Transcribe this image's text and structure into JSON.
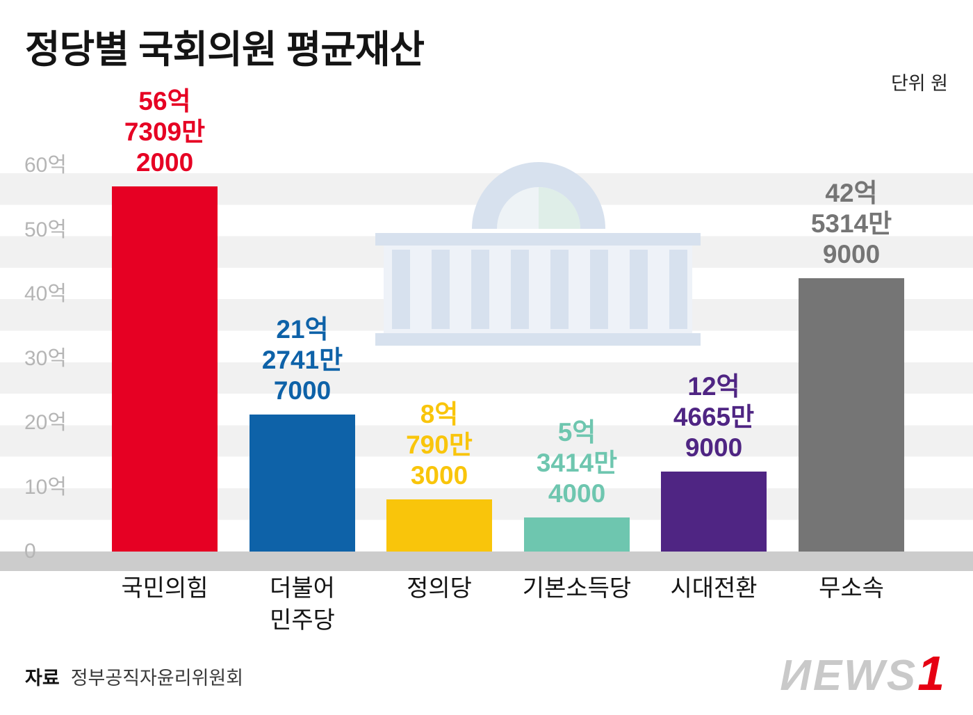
{
  "header": {
    "title": "정당별 국회의원 평균재산",
    "unit_label": "단위 원"
  },
  "chart_data": {
    "type": "bar",
    "title": "정당별 국회의원 평균재산",
    "unit": "원",
    "grid": "horizontal-striped-bands",
    "legend": "none",
    "ylim_eok": [
      0,
      60
    ],
    "ytick_labels": [
      "60억",
      "50억",
      "40억",
      "30억",
      "20억",
      "10억",
      "0"
    ],
    "categories": [
      "국민의힘",
      "더불어민주당",
      "정의당",
      "기본소득당",
      "시대전환",
      "무소속"
    ],
    "values_won": [
      5673092000,
      2127417000,
      807903000,
      534144000,
      1246659000,
      4253149000
    ],
    "bars": [
      {
        "category": "국민의힘",
        "category_lines": [
          "국민의힘"
        ],
        "value_won": 5673092000,
        "value_eok": 56.73092,
        "value_lines": [
          "56억",
          "7309만",
          "2000"
        ],
        "color": "#e60023"
      },
      {
        "category": "더불어민주당",
        "category_lines": [
          "더불어",
          "민주당"
        ],
        "value_won": 2127417000,
        "value_eok": 21.27417,
        "value_lines": [
          "21억",
          "2741만",
          "7000"
        ],
        "color": "#0e62a8"
      },
      {
        "category": "정의당",
        "category_lines": [
          "정의당"
        ],
        "value_won": 807903000,
        "value_eok": 8.07903,
        "value_lines": [
          "8억",
          "790만",
          "3000"
        ],
        "color": "#f9c50b"
      },
      {
        "category": "기본소득당",
        "category_lines": [
          "기본소득당"
        ],
        "value_won": 534144000,
        "value_eok": 5.34144,
        "value_lines": [
          "5억",
          "3414만",
          "4000"
        ],
        "color": "#6ec6af"
      },
      {
        "category": "시대전환",
        "category_lines": [
          "시대전환"
        ],
        "value_won": 1246659000,
        "value_eok": 12.46659,
        "value_lines": [
          "12억",
          "4665만",
          "9000"
        ],
        "color": "#4f2583"
      },
      {
        "category": "무소속",
        "category_lines": [
          "무소속"
        ],
        "value_won": 4253149000,
        "value_eok": 42.53149,
        "value_lines": [
          "42억",
          "5314만",
          "9000"
        ],
        "color": "#757575"
      }
    ]
  },
  "colors": {
    "stripe_band": "#f1f1f1",
    "axis_strip": "#cccccc",
    "ytick_text": "#b5b5b5",
    "title_text": "#141414",
    "watermark_blue": "#d7e1ee",
    "logo_gray": "#c9c9c9",
    "logo_red": "#e60012"
  },
  "footer": {
    "source_label": "자료",
    "source_name": "정부공직자윤리위원회",
    "logo_brand": "news1",
    "logo_display": "ИEWS",
    "logo_accent": "1"
  }
}
